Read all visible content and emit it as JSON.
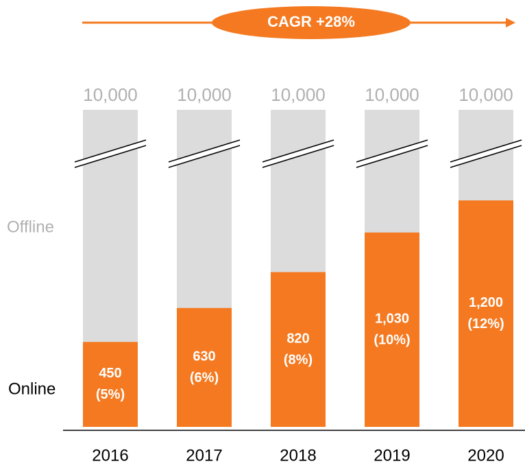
{
  "chart_data": {
    "type": "bar",
    "stacked": true,
    "annotation": "CAGR +28%",
    "categories": [
      "2016",
      "2017",
      "2018",
      "2019",
      "2020"
    ],
    "totals": [
      10000,
      10000,
      10000,
      10000,
      10000
    ],
    "total_labels": [
      "10,000",
      "10,000",
      "10,000",
      "10,000",
      "10,000"
    ],
    "series": [
      {
        "name": "Online",
        "color": "#f47920",
        "values": [
          450,
          630,
          820,
          1030,
          1200
        ],
        "value_labels": [
          "450 (5%)",
          "630 (6%)",
          "820 (8%)",
          "1,030 (10%)",
          "1,200 (12%)"
        ]
      },
      {
        "name": "Offline",
        "color": "#dcdcdc"
      }
    ]
  }
}
